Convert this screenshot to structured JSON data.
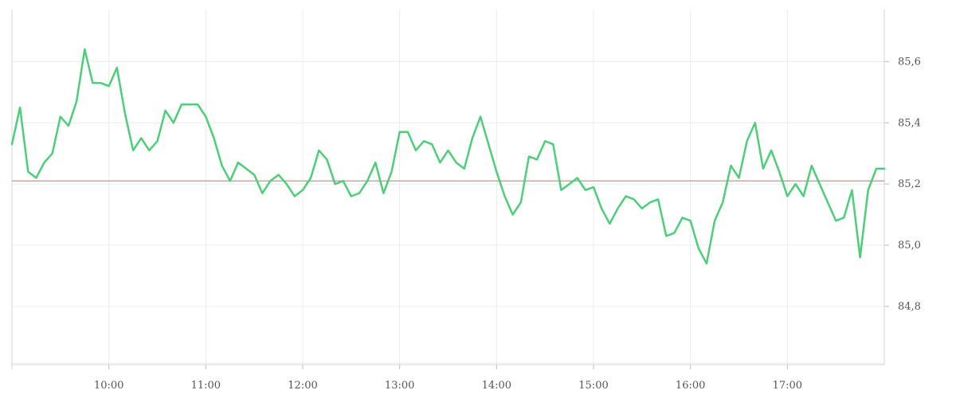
{
  "chart_data": {
    "type": "line",
    "x_ticks": [
      "10:00",
      "11:00",
      "12:00",
      "13:00",
      "14:00",
      "15:00",
      "16:00",
      "17:00"
    ],
    "y_ticks": [
      "84,8",
      "85,0",
      "85,2",
      "85,4",
      "85,6"
    ],
    "ylim": [
      84.61,
      85.77
    ],
    "xlim": [
      "09:00",
      "18:00"
    ],
    "grid": true,
    "y_axis_position": "right",
    "reference_line": {
      "value": 85.21,
      "color": "#e06666"
    },
    "series": [
      {
        "color": "#4ccf78",
        "points": [
          [
            "09:00",
            85.33
          ],
          [
            "09:05",
            85.45
          ],
          [
            "09:10",
            85.24
          ],
          [
            "09:15",
            85.22
          ],
          [
            "09:20",
            85.27
          ],
          [
            "09:25",
            85.3
          ],
          [
            "09:30",
            85.42
          ],
          [
            "09:35",
            85.39
          ],
          [
            "09:40",
            85.47
          ],
          [
            "09:45",
            85.64
          ],
          [
            "09:50",
            85.53
          ],
          [
            "09:55",
            85.53
          ],
          [
            "10:00",
            85.52
          ],
          [
            "10:05",
            85.58
          ],
          [
            "10:10",
            85.43
          ],
          [
            "10:15",
            85.31
          ],
          [
            "10:20",
            85.35
          ],
          [
            "10:25",
            85.31
          ],
          [
            "10:30",
            85.34
          ],
          [
            "10:35",
            85.44
          ],
          [
            "10:40",
            85.4
          ],
          [
            "10:45",
            85.46
          ],
          [
            "10:50",
            85.46
          ],
          [
            "10:55",
            85.46
          ],
          [
            "11:00",
            85.42
          ],
          [
            "11:05",
            85.35
          ],
          [
            "11:10",
            85.26
          ],
          [
            "11:15",
            85.21
          ],
          [
            "11:20",
            85.27
          ],
          [
            "11:25",
            85.25
          ],
          [
            "11:30",
            85.23
          ],
          [
            "11:35",
            85.17
          ],
          [
            "11:40",
            85.21
          ],
          [
            "11:45",
            85.23
          ],
          [
            "11:50",
            85.2
          ],
          [
            "11:55",
            85.16
          ],
          [
            "12:00",
            85.18
          ],
          [
            "12:05",
            85.22
          ],
          [
            "12:10",
            85.31
          ],
          [
            "12:15",
            85.28
          ],
          [
            "12:20",
            85.2
          ],
          [
            "12:25",
            85.21
          ],
          [
            "12:30",
            85.16
          ],
          [
            "12:35",
            85.17
          ],
          [
            "12:40",
            85.21
          ],
          [
            "12:45",
            85.27
          ],
          [
            "12:50",
            85.17
          ],
          [
            "12:55",
            85.24
          ],
          [
            "13:00",
            85.37
          ],
          [
            "13:05",
            85.37
          ],
          [
            "13:10",
            85.31
          ],
          [
            "13:15",
            85.34
          ],
          [
            "13:20",
            85.33
          ],
          [
            "13:25",
            85.27
          ],
          [
            "13:30",
            85.31
          ],
          [
            "13:35",
            85.27
          ],
          [
            "13:40",
            85.25
          ],
          [
            "13:45",
            85.35
          ],
          [
            "13:50",
            85.42
          ],
          [
            "13:55",
            85.33
          ],
          [
            "14:00",
            85.24
          ],
          [
            "14:05",
            85.16
          ],
          [
            "14:10",
            85.1
          ],
          [
            "14:15",
            85.14
          ],
          [
            "14:20",
            85.29
          ],
          [
            "14:25",
            85.28
          ],
          [
            "14:30",
            85.34
          ],
          [
            "14:35",
            85.33
          ],
          [
            "14:40",
            85.18
          ],
          [
            "14:45",
            85.2
          ],
          [
            "14:50",
            85.22
          ],
          [
            "14:55",
            85.18
          ],
          [
            "15:00",
            85.19
          ],
          [
            "15:05",
            85.12
          ],
          [
            "15:10",
            85.07
          ],
          [
            "15:15",
            85.12
          ],
          [
            "15:20",
            85.16
          ],
          [
            "15:25",
            85.15
          ],
          [
            "15:30",
            85.12
          ],
          [
            "15:35",
            85.14
          ],
          [
            "15:40",
            85.15
          ],
          [
            "15:45",
            85.03
          ],
          [
            "15:50",
            85.04
          ],
          [
            "15:55",
            85.09
          ],
          [
            "16:00",
            85.08
          ],
          [
            "16:05",
            84.99
          ],
          [
            "16:10",
            84.94
          ],
          [
            "16:15",
            85.08
          ],
          [
            "16:20",
            85.14
          ],
          [
            "16:25",
            85.26
          ],
          [
            "16:30",
            85.22
          ],
          [
            "16:35",
            85.34
          ],
          [
            "16:40",
            85.4
          ],
          [
            "16:45",
            85.25
          ],
          [
            "16:50",
            85.31
          ],
          [
            "16:55",
            85.24
          ],
          [
            "17:00",
            85.16
          ],
          [
            "17:05",
            85.2
          ],
          [
            "17:10",
            85.16
          ],
          [
            "17:15",
            85.26
          ],
          [
            "17:20",
            85.2
          ],
          [
            "17:25",
            85.14
          ],
          [
            "17:30",
            85.08
          ],
          [
            "17:35",
            85.09
          ],
          [
            "17:40",
            85.18
          ],
          [
            "17:45",
            84.96
          ],
          [
            "17:50",
            85.18
          ],
          [
            "17:55",
            85.25
          ],
          [
            "18:00",
            85.25
          ]
        ]
      }
    ]
  }
}
